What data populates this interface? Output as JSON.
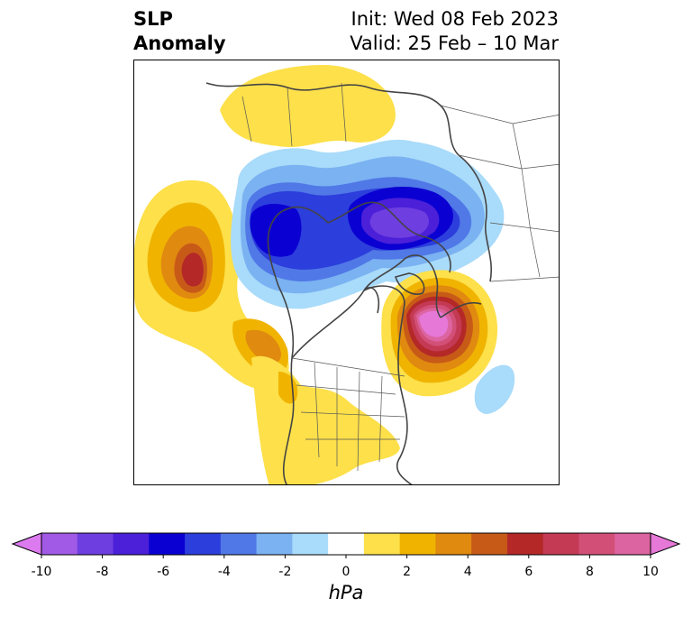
{
  "title": {
    "variable": "SLP",
    "variable_line2": "Anomaly",
    "init": "Init: Wed 08 Feb 2023",
    "valid": "Valid: 25 Feb – 10 Mar"
  },
  "colorbar": {
    "unit": "hPa",
    "ticks": [
      "-10",
      "-8",
      "-6",
      "-4",
      "-2",
      "0",
      "2",
      "4",
      "6",
      "8",
      "10"
    ],
    "extend": "both",
    "colors": [
      "#dc7af0",
      "#a05ae6",
      "#6e3ee0",
      "#4b20d8",
      "#0a00d2",
      "#2c3edc",
      "#5078e6",
      "#7ab2f2",
      "#a9dbfa",
      "#ffffff",
      "#fde04a",
      "#f0b400",
      "#e08a10",
      "#c85a18",
      "#b42828",
      "#c43a55",
      "#d25078",
      "#dc64a0",
      "#e678d8"
    ]
  },
  "map": {
    "projection": "north polar stereographic",
    "features": [
      "coastlines",
      "country borders",
      "US state borders"
    ],
    "anomaly_centers": [
      {
        "sign": "negative",
        "approx_hpa": -8,
        "region": "Arctic / Siberia"
      },
      {
        "sign": "negative",
        "approx_hpa": -6,
        "region": "Eastern Siberia / Bering"
      },
      {
        "sign": "positive",
        "approx_hpa": 10,
        "region": "North Atlantic / Iceland"
      },
      {
        "sign": "positive",
        "approx_hpa": 6,
        "region": "North Pacific"
      }
    ]
  }
}
